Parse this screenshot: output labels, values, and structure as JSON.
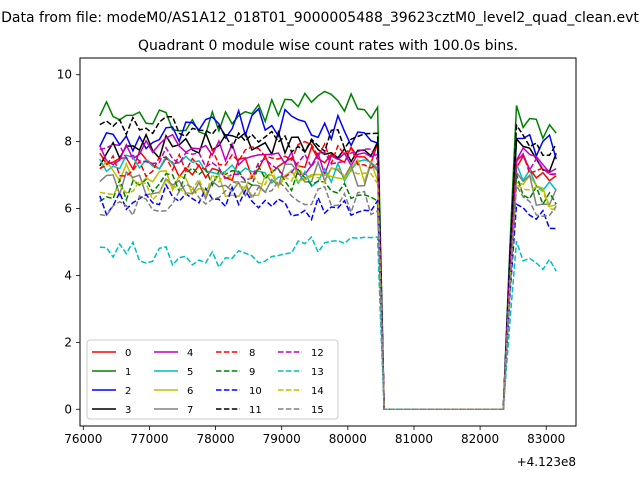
{
  "chart_data": {
    "type": "line",
    "suptitle": "Data from file: modeM0/AS1A12_018T01_9000005488_39623cztM0_level2_quad_clean.evt",
    "title": "Quadrant 0 module wise count rates with 100.0s bins.",
    "xlabel": "",
    "ylabel": "",
    "x_offset_label": "+4.123e8",
    "xlim": [
      75950,
      83450
    ],
    "ylim": [
      -0.5,
      10.5
    ],
    "x_ticks": [
      76000,
      77000,
      78000,
      79000,
      80000,
      81000,
      82000,
      83000
    ],
    "x_tick_labels": [
      "76000",
      "77000",
      "78000",
      "79000",
      "80000",
      "81000",
      "82000",
      "83000"
    ],
    "y_ticks": [
      0,
      2,
      4,
      6,
      8,
      10
    ],
    "y_tick_labels": [
      "0",
      "2",
      "4",
      "6",
      "8",
      "10"
    ],
    "legend_location": "lower-left",
    "series": [
      {
        "name": "0",
        "color": "#ff0000",
        "dash": "solid",
        "base": 7.4,
        "amp": 0.35
      },
      {
        "name": "1",
        "color": "#008000",
        "dash": "solid",
        "base": 8.85,
        "amp": 0.45
      },
      {
        "name": "2",
        "color": "#0000ff",
        "dash": "solid",
        "base": 8.3,
        "amp": 0.45
      },
      {
        "name": "3",
        "color": "#000000",
        "dash": "solid",
        "base": 7.85,
        "amp": 0.4
      },
      {
        "name": "4",
        "color": "#bf00bf",
        "dash": "solid",
        "base": 7.6,
        "amp": 0.4
      },
      {
        "name": "5",
        "color": "#00bfbf",
        "dash": "solid",
        "base": 7.15,
        "amp": 0.3
      },
      {
        "name": "6",
        "color": "#bfbf00",
        "dash": "solid",
        "base": 6.9,
        "amp": 0.35
      },
      {
        "name": "7",
        "color": "#808080",
        "dash": "solid",
        "base": 6.8,
        "amp": 0.4
      },
      {
        "name": "8",
        "color": "#ff0000",
        "dash": "dashed",
        "base": 7.5,
        "amp": 0.3
      },
      {
        "name": "9",
        "color": "#008000",
        "dash": "dashed",
        "base": 6.75,
        "amp": 0.35
      },
      {
        "name": "10",
        "color": "#0000ff",
        "dash": "dashed",
        "base": 6.2,
        "amp": 0.35
      },
      {
        "name": "11",
        "color": "#000000",
        "dash": "dashed",
        "base": 8.2,
        "amp": 0.35
      },
      {
        "name": "12",
        "color": "#bf00bf",
        "dash": "dashed",
        "base": 7.45,
        "amp": 0.35
      },
      {
        "name": "13",
        "color": "#00bfbf",
        "dash": "dashed",
        "base": 4.75,
        "amp": 0.3
      },
      {
        "name": "14",
        "color": "#bfbf00",
        "dash": "dashed",
        "base": 6.75,
        "amp": 0.35
      },
      {
        "name": "15",
        "color": "#808080",
        "dash": "dashed",
        "base": 6.35,
        "amp": 0.35
      }
    ],
    "segments": {
      "active1_start": 76250,
      "active1_end": 80450,
      "gap_zero_start": 80550,
      "gap_zero_end": 82350,
      "active2_start": 82550,
      "active2_end": 83150,
      "step": 100
    }
  }
}
